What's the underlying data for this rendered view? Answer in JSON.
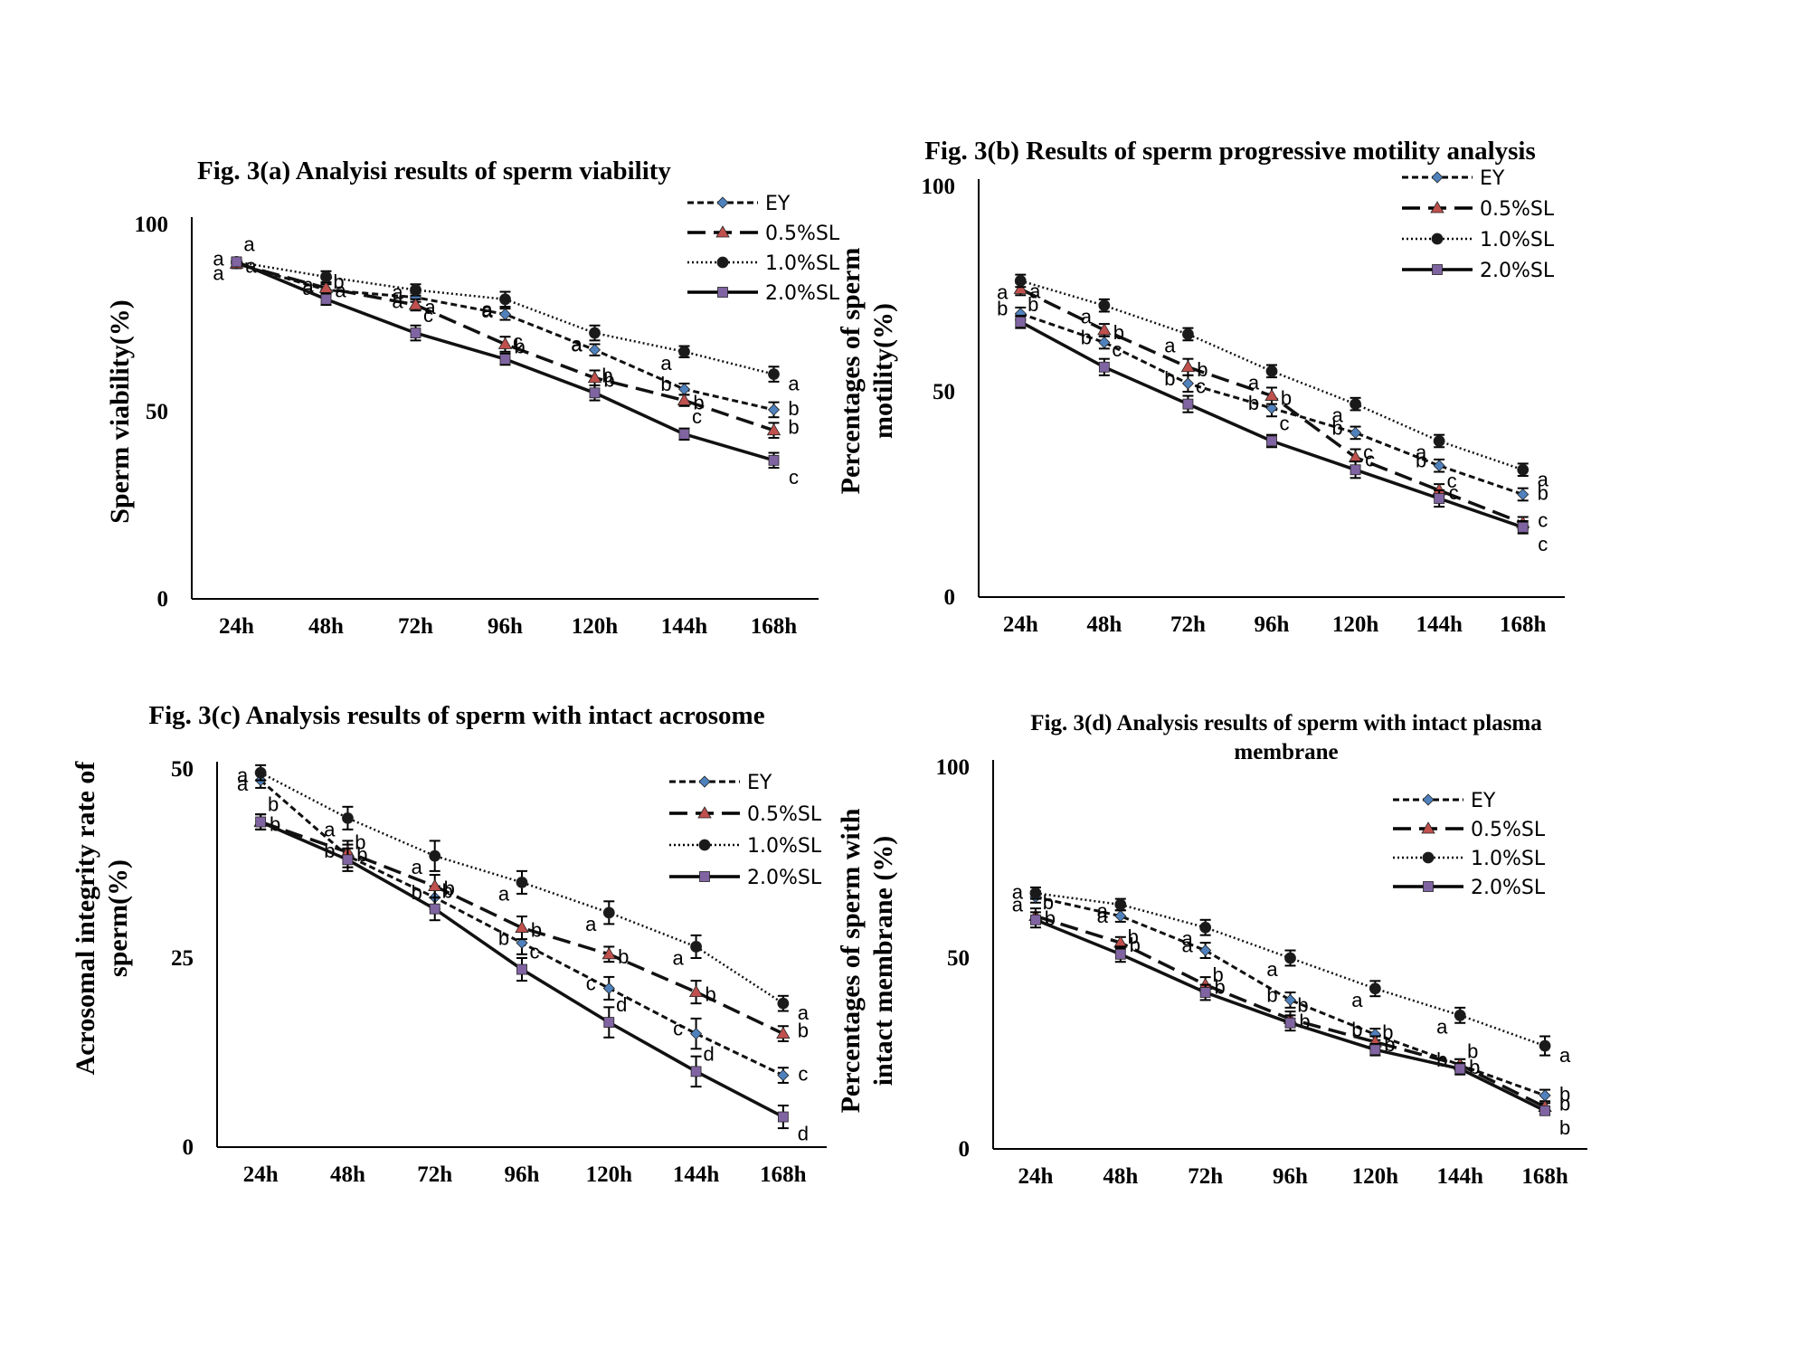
{
  "chart_data": [
    {
      "type": "line",
      "title": [
        "Fig. 3(a) Analyisi results of sperm viability"
      ],
      "ylabel": [
        "Sperm viability(%)"
      ],
      "categories": [
        "24h",
        "48h",
        "72h",
        "96h",
        "120h",
        "144h",
        "168h"
      ],
      "ylim": [
        0,
        100
      ],
      "yticks": [
        0,
        50,
        100
      ],
      "legend": "top-right",
      "series": [
        {
          "name": "EY",
          "values": [
            89.5,
            82.5,
            80.5,
            76,
            66.5,
            56,
            50.5
          ],
          "err": [
            1.2,
            1.5,
            1.2,
            1.5,
            1.5,
            1.5,
            2
          ],
          "sig": [
            "a",
            "a",
            "a",
            "a",
            "a",
            "b",
            "b"
          ]
        },
        {
          "name": "0.5%SL",
          "values": [
            89.5,
            83,
            78.5,
            68,
            59,
            53,
            45
          ],
          "err": [
            1,
            1.5,
            1.5,
            2,
            2,
            1.5,
            2
          ],
          "sig": [
            "a",
            "a",
            "a",
            "b",
            "b",
            "b",
            "b"
          ]
        },
        {
          "name": "1.0%SL",
          "values": [
            90,
            86,
            82.5,
            80,
            71,
            66,
            60
          ],
          "err": [
            1,
            1.5,
            1.5,
            2,
            2,
            1.5,
            2
          ],
          "sig": [
            "a",
            "a",
            "a",
            "a",
            "a",
            "a",
            "a"
          ]
        },
        {
          "name": "2.0%SL",
          "values": [
            90,
            80,
            71,
            64,
            55,
            44,
            37
          ],
          "err": [
            1,
            1.5,
            2,
            1.5,
            2,
            1.5,
            2
          ],
          "sig": [
            "a",
            "b",
            "c",
            "c",
            "b",
            "c",
            "c"
          ]
        }
      ]
    },
    {
      "type": "line",
      "title": [
        "Fig. 3(b) Results of sperm progressive motility analysis"
      ],
      "ylabel": [
        "Percentages of sperm",
        "motility(%)"
      ],
      "categories": [
        "24h",
        "48h",
        "72h",
        "96h",
        "120h",
        "144h",
        "168h"
      ],
      "ylim": [
        0,
        100
      ],
      "yticks": [
        0,
        50,
        100
      ],
      "legend": "top-right",
      "series": [
        {
          "name": "EY",
          "values": [
            69,
            62,
            52,
            46,
            40,
            32,
            25
          ],
          "err": [
            1.5,
            1.5,
            2,
            2,
            1.5,
            1.5,
            1.5
          ],
          "sig": [
            "b",
            "b",
            "b",
            "b",
            "b",
            "b",
            "b"
          ]
        },
        {
          "name": "0.5%SL",
          "values": [
            75,
            65,
            56,
            49,
            34,
            26,
            18
          ],
          "err": [
            1.5,
            1.5,
            2,
            2,
            2,
            1.5,
            1.5
          ],
          "sig": [
            "a",
            "b",
            "b",
            "b",
            "c",
            "c",
            "c"
          ]
        },
        {
          "name": "1.0%SL",
          "values": [
            77,
            71,
            64,
            55,
            47,
            38,
            31
          ],
          "err": [
            1.5,
            1.5,
            1.5,
            1.5,
            1.5,
            1.5,
            1.5
          ],
          "sig": [
            "a",
            "a",
            "a",
            "a",
            "a",
            "a",
            "a"
          ]
        },
        {
          "name": "2.0%SL",
          "values": [
            67,
            56,
            47,
            38,
            31,
            24,
            17
          ],
          "err": [
            1.5,
            2,
            2,
            1.5,
            2,
            2,
            1.5
          ],
          "sig": [
            "b",
            "c",
            "c",
            "c",
            "c",
            "c",
            "c"
          ]
        }
      ]
    },
    {
      "type": "line",
      "title": [
        "Fig. 3(c) Analysis results of sperm with intact acrosome"
      ],
      "ylabel": [
        "Acrosomal integrity rate of",
        "sperm(%)"
      ],
      "categories": [
        "24h",
        "48h",
        "72h",
        "96h",
        "120h",
        "144h",
        "168h"
      ],
      "ylim": [
        0,
        50
      ],
      "yticks": [
        0,
        25,
        50
      ],
      "legend": "top-right",
      "series": [
        {
          "name": "EY",
          "values": [
            48.5,
            38.5,
            33,
            27,
            21,
            15,
            9.5
          ],
          "err": [
            1,
            1.5,
            1.5,
            1.5,
            1.5,
            2,
            1
          ],
          "sig": [
            "a",
            "b",
            "b",
            "b",
            "c",
            "c",
            "c"
          ]
        },
        {
          "name": "0.5%SL",
          "values": [
            43,
            39,
            34.5,
            29,
            25.5,
            20.5,
            15
          ],
          "err": [
            1,
            1.5,
            1.5,
            1.5,
            1,
            1.5,
            1
          ],
          "sig": [
            "b",
            "b",
            "b",
            "b",
            "b",
            "b",
            "b"
          ]
        },
        {
          "name": "1.0%SL",
          "values": [
            49.5,
            43.5,
            38.5,
            35,
            31,
            26.5,
            19
          ],
          "err": [
            1,
            1.5,
            2,
            1.5,
            1.5,
            1.5,
            1
          ],
          "sig": [
            "a",
            "a",
            "a",
            "a",
            "a",
            "a",
            "a"
          ]
        },
        {
          "name": "2.0%SL",
          "values": [
            43,
            38,
            31.5,
            23.5,
            16.5,
            10,
            4
          ],
          "err": [
            1,
            1.5,
            1.5,
            1.5,
            2,
            2,
            1.5
          ],
          "sig": [
            "b",
            "b",
            "b",
            "c",
            "d",
            "d",
            "d"
          ]
        }
      ]
    },
    {
      "type": "line",
      "title": [
        "Fig. 3(d) Analysis results of sperm with intact  plasma",
        "membrane"
      ],
      "ylabel": [
        "Percentages of sperm with",
        "intact membrane (%)"
      ],
      "categories": [
        "24h",
        "48h",
        "72h",
        "96h",
        "120h",
        "144h",
        "168h"
      ],
      "ylim": [
        0,
        100
      ],
      "yticks": [
        0,
        50,
        100
      ],
      "legend": "top-right",
      "series": [
        {
          "name": "EY",
          "values": [
            66,
            61,
            52,
            39,
            30,
            22,
            14
          ],
          "err": [
            1.5,
            1.5,
            2,
            2,
            1.5,
            1.5,
            1.5
          ],
          "sig": [
            "a",
            "a",
            "a",
            "b",
            "b",
            "b",
            "b"
          ]
        },
        {
          "name": "0.5%SL",
          "values": [
            61,
            54,
            43,
            34,
            28,
            22,
            11
          ],
          "err": [
            2,
            1.5,
            2,
            2,
            1.5,
            1.5,
            1
          ],
          "sig": [
            "b",
            "b",
            "b",
            "b",
            "b",
            "b",
            "b"
          ]
        },
        {
          "name": "1.0%SL",
          "values": [
            67,
            64,
            58,
            50,
            42,
            35,
            27
          ],
          "err": [
            1.5,
            1.5,
            2,
            2,
            2,
            2,
            2.5
          ],
          "sig": [
            "a",
            "a",
            "a",
            "a",
            "a",
            "a",
            "a"
          ]
        },
        {
          "name": "2.0%SL",
          "values": [
            60,
            51,
            41,
            33,
            26,
            21,
            10
          ],
          "err": [
            2,
            2,
            2,
            2,
            1.5,
            1.5,
            1
          ],
          "sig": [
            "b",
            "b",
            "b",
            "b",
            "b",
            "b",
            "b"
          ]
        }
      ]
    }
  ],
  "styles": {
    "EY": {
      "dash": "7,4",
      "width": 3,
      "color": "#111111",
      "marker": "diamond",
      "mcolor": "#4f81bd"
    },
    "0.5%SL": {
      "dash": "20,9",
      "width": 3.5,
      "color": "#111111",
      "marker": "triangle",
      "mcolor": "#c0504d"
    },
    "1.0%SL": {
      "dash": "2,3",
      "width": 2.5,
      "color": "#111111",
      "marker": "circle",
      "mcolor": "#1a1a1a"
    },
    "2.0%SL": {
      "dash": "",
      "width": 3.5,
      "color": "#111111",
      "marker": "square",
      "mcolor": "#8064a2"
    }
  }
}
